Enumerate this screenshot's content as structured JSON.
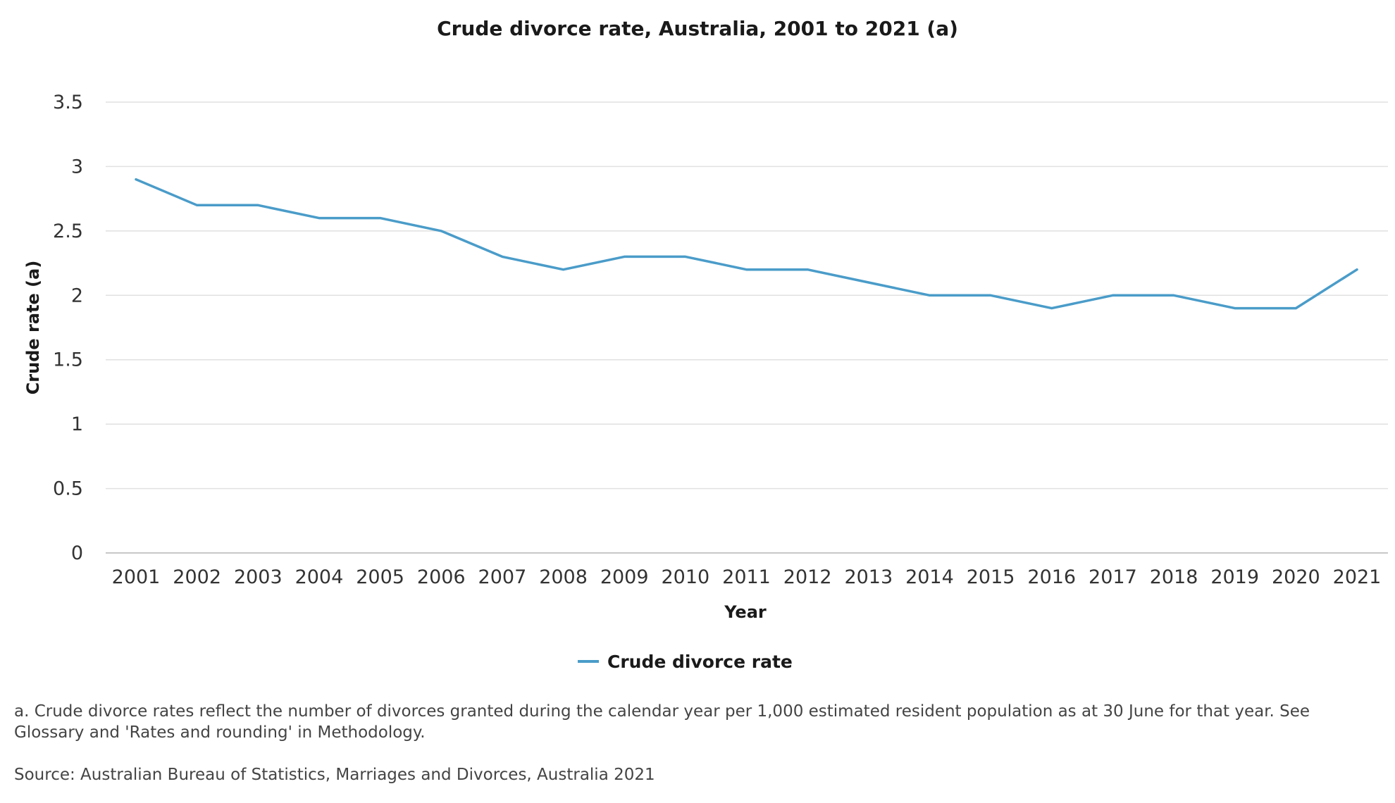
{
  "chart_data": {
    "type": "line",
    "title": "Crude divorce rate, Australia, 2001 to 2021 (a)",
    "xlabel": "Year",
    "ylabel": "Crude rate (a)",
    "categories": [
      "2001",
      "2002",
      "2003",
      "2004",
      "2005",
      "2006",
      "2007",
      "2008",
      "2009",
      "2010",
      "2011",
      "2012",
      "2013",
      "2014",
      "2015",
      "2016",
      "2017",
      "2018",
      "2019",
      "2020",
      "2021"
    ],
    "series": [
      {
        "name": "Crude divorce rate",
        "color": "#4a9cc9",
        "values": [
          2.9,
          2.7,
          2.7,
          2.6,
          2.6,
          2.5,
          2.3,
          2.2,
          2.3,
          2.3,
          2.2,
          2.2,
          2.1,
          2.0,
          2.0,
          1.9,
          2.0,
          2.0,
          1.9,
          1.9,
          2.2
        ]
      }
    ],
    "yticks": [
      "0",
      "0.5",
      "1",
      "1.5",
      "2",
      "2.5",
      "3",
      "3.5"
    ],
    "ylim": [
      0,
      3.5
    ],
    "grid": true,
    "legend": "bottom-center"
  },
  "footnote": "a. Crude divorce rates reflect the number of divorces granted during the calendar year per 1,000 estimated resident population as at 30 June for that year. See Glossary and 'Rates and rounding' in Methodology.",
  "source": "Source: Australian Bureau of Statistics, Marriages and Divorces, Australia 2021"
}
